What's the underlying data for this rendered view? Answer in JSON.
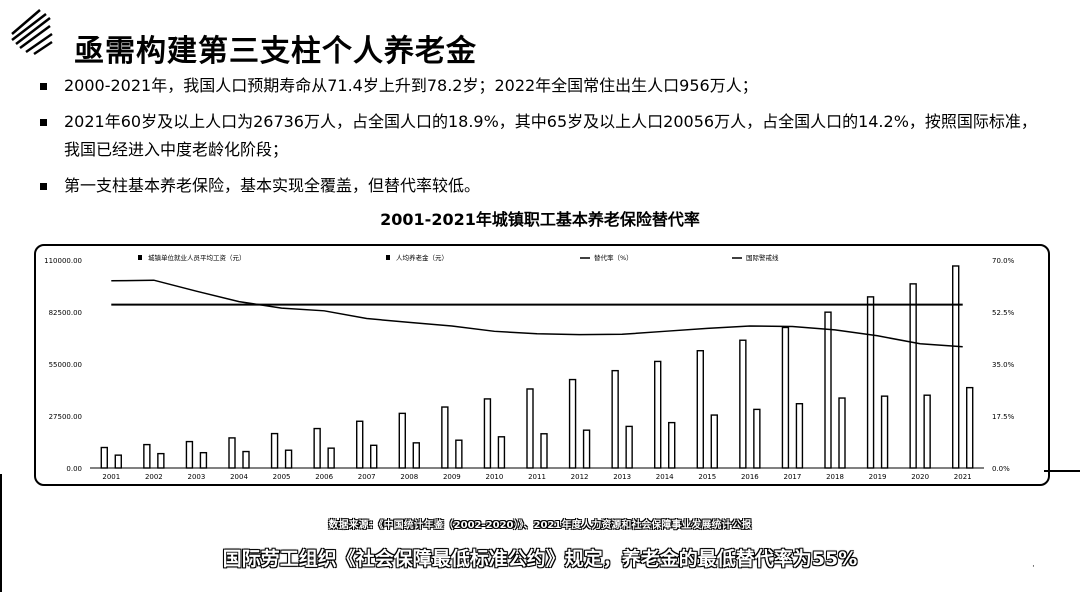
{
  "title": "亟需构建第三支柱个人养老金",
  "bullets": [
    "2000-2021年，我国人口预期寿命从71.4岁上升到78.2岁；2022年全国常住出生人口956万人；",
    "2021年60岁及以上人口为26736万人，占全国人口的18.9%，其中65岁及以上人口20056万人，占全国人口的14.2%，按照国际标准，我国已经进入中度老龄化阶段；",
    "第一支柱基本养老保险，基本实现全覆盖，但替代率较低。"
  ],
  "source": "数据来源：《中国统计年鉴（2002-2020）》、2021年度人力资源和社会保障事业发展统计公报",
  "footnote": "国际劳工组织《社会保障最低标准公约》规定，养老金的最低替代率为55%",
  "chart_data": {
    "type": "bar",
    "title": "2001-2021年城镇职工基本养老保险替代率",
    "categories": [
      "2001",
      "2002",
      "2003",
      "2004",
      "2005",
      "2006",
      "2007",
      "2008",
      "2009",
      "2010",
      "2011",
      "2012",
      "2013",
      "2014",
      "2015",
      "2016",
      "2017",
      "2018",
      "2019",
      "2020",
      "2021"
    ],
    "series": [
      {
        "name": "城镇单位就业人员平均工资（元）",
        "kind": "bar",
        "axis": "left",
        "values": [
          10834,
          12373,
          13969,
          15920,
          18200,
          20856,
          24721,
          28898,
          32244,
          36539,
          41799,
          46769,
          51483,
          56360,
          62029,
          67569,
          74318,
          82413,
          90501,
          97379,
          106837
        ]
      },
      {
        "name": "人均养老金（元）",
        "kind": "bar",
        "axis": "left",
        "values": [
          6800,
          7600,
          8100,
          8700,
          9400,
          10500,
          12000,
          13300,
          14700,
          16500,
          18100,
          20000,
          22000,
          24000,
          28000,
          31000,
          34000,
          37000,
          38000,
          38500,
          42500
        ]
      },
      {
        "name": "替代率（%）",
        "kind": "line",
        "axis": "right",
        "values": [
          63.0,
          63.2,
          59.5,
          56.0,
          53.8,
          52.9,
          50.3,
          49.0,
          47.8,
          46.0,
          45.2,
          44.9,
          45.0,
          46.0,
          47.0,
          47.8,
          47.6,
          46.5,
          44.5,
          41.8,
          40.8
        ]
      },
      {
        "name": "国际警戒线",
        "kind": "line",
        "axis": "right",
        "values": [
          55,
          55,
          55,
          55,
          55,
          55,
          55,
          55,
          55,
          55,
          55,
          55,
          55,
          55,
          55,
          55,
          55,
          55,
          55,
          55,
          55
        ]
      }
    ],
    "yleft": {
      "lim": [
        0,
        110000
      ],
      "ticks": [
        "0.00",
        "27500.00",
        "55000.00",
        "82500.00",
        "110000.00"
      ]
    },
    "yright": {
      "lim": [
        0,
        70
      ],
      "ticks": [
        "0.0%",
        "17.5%",
        "35.0%",
        "52.5%",
        "70.0%"
      ]
    },
    "legend": "top",
    "colors": {
      "bar": "#ffffff",
      "bar_stroke": "#000000",
      "line": "#000000"
    }
  }
}
